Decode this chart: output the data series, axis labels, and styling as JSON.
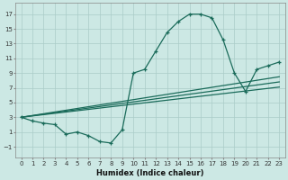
{
  "xlabel": "Humidex (Indice chaleur)",
  "xlim": [
    -0.5,
    23.5
  ],
  "ylim": [
    -2.5,
    18.5
  ],
  "xticks": [
    0,
    1,
    2,
    3,
    4,
    5,
    6,
    7,
    8,
    9,
    10,
    11,
    12,
    13,
    14,
    15,
    16,
    17,
    18,
    19,
    20,
    21,
    22,
    23
  ],
  "yticks": [
    -1,
    1,
    3,
    5,
    7,
    9,
    11,
    13,
    15,
    17
  ],
  "bg_color": "#cce8e4",
  "grid_color": "#aaccc8",
  "line_color": "#1a6b5a",
  "line1_x": [
    0,
    1,
    2,
    3,
    4,
    5,
    6,
    7,
    8,
    9,
    10,
    11,
    12,
    13,
    14,
    15,
    16,
    17,
    18,
    19,
    20,
    21,
    22,
    23
  ],
  "line1_y": [
    3,
    2.5,
    2.2,
    2.0,
    0.7,
    1.0,
    0.5,
    -0.3,
    -0.5,
    1.3,
    9.0,
    9.5,
    12.0,
    14.5,
    16.0,
    17.0,
    17.0,
    16.5,
    13.5,
    9.0,
    6.5,
    9.5,
    10.0,
    10.5
  ],
  "line2_x": [
    0,
    23
  ],
  "line2_y": [
    3.0,
    8.5
  ],
  "line3_x": [
    0,
    23
  ],
  "line3_y": [
    3.0,
    7.8
  ],
  "line4_x": [
    0,
    23
  ],
  "line4_y": [
    3.0,
    7.1
  ]
}
